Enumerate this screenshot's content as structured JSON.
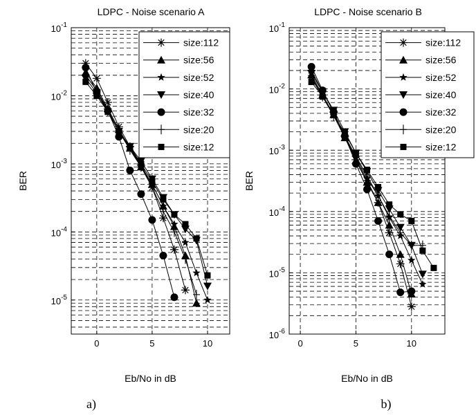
{
  "chart_data": [
    {
      "type": "line",
      "title": "LDPC - Noise scenario A",
      "xlabel": "Eb/No in dB",
      "ylabel": "BER",
      "caption": "a)",
      "xlim": [
        -2.3,
        12
      ],
      "ylim_log10": [
        -5.5,
        -1
      ],
      "xticks": [
        "0",
        "5",
        "10"
      ],
      "yticks": [
        "10^-1",
        "10^-2",
        "10^-3",
        "10^-4",
        "10^-5"
      ],
      "yscale": "log",
      "grid": true,
      "legend_position": "top-right",
      "series": [
        {
          "name": "size:112",
          "marker": "asterisk",
          "x": [
            -1,
            0,
            1,
            2,
            3,
            4,
            5,
            6,
            7,
            8,
            9,
            10
          ],
          "y": [
            0.03,
            0.018,
            0.008,
            0.0035,
            0.0018,
            0.00095,
            0.00045,
            0.00016,
            5.5e-05,
            1.4e-05,
            null,
            null
          ]
        },
        {
          "name": "size:56",
          "marker": "triangle-up",
          "x": [
            -1,
            0,
            1,
            2,
            3,
            4,
            5,
            6,
            7,
            8,
            9,
            10
          ],
          "y": [
            0.022,
            0.013,
            0.0065,
            0.0032,
            0.0017,
            0.0009,
            0.0005,
            0.00024,
            0.00012,
            4.5e-05,
            9e-06,
            null
          ]
        },
        {
          "name": "size:52",
          "marker": "star",
          "x": [
            -1,
            0,
            1,
            2,
            3,
            4,
            5,
            6,
            7,
            8,
            9,
            10
          ],
          "y": [
            0.02,
            0.012,
            0.0062,
            0.003,
            0.0017,
            0.00095,
            0.0005,
            0.00024,
            0.00013,
            7e-05,
            2.5e-05,
            1e-05
          ]
        },
        {
          "name": "size:40",
          "marker": "triangle-down",
          "x": [
            -1,
            0,
            1,
            2,
            3,
            4,
            5,
            6,
            7,
            8,
            9,
            10
          ],
          "y": [
            0.018,
            0.011,
            0.0058,
            0.003,
            0.0018,
            0.0011,
            0.0006,
            0.00032,
            0.00018,
            0.00011,
            7.5e-05,
            1.6e-05
          ]
        },
        {
          "name": "size:32",
          "marker": "circle",
          "x": [
            -1,
            0,
            1,
            2,
            3,
            4,
            5,
            6,
            7
          ],
          "y": [
            0.026,
            0.011,
            0.006,
            0.0025,
            0.0008,
            0.00036,
            0.00015,
            4.5e-05,
            1.1e-05
          ]
        },
        {
          "name": "size:20",
          "marker": "plus",
          "x": [
            -1,
            0,
            1,
            2,
            3,
            4,
            5,
            6,
            7,
            8,
            9
          ],
          "y": [
            0.02,
            0.012,
            0.006,
            0.003,
            0.0016,
            0.0009,
            0.00045,
            0.0002,
            0.0001,
            4e-05,
            1.2e-05
          ]
        },
        {
          "name": "size:12",
          "marker": "square",
          "x": [
            -1,
            0,
            1,
            2,
            3,
            4,
            5,
            6,
            7,
            8,
            9,
            10
          ],
          "y": [
            0.016,
            0.01,
            0.0058,
            0.003,
            0.0018,
            0.001,
            0.00055,
            0.0003,
            0.00018,
            0.00013,
            8e-05,
            2.3e-05
          ]
        }
      ]
    },
    {
      "type": "line",
      "title": "LDPC - Noise scenario B",
      "xlabel": "Eb/No in dB",
      "ylabel": "BER",
      "caption": "b)",
      "xlim": [
        -1,
        13
      ],
      "ylim_log10": [
        -6,
        -1
      ],
      "xticks": [
        "0",
        "5",
        "10"
      ],
      "yticks": [
        "10^-1",
        "10^-2",
        "10^-3",
        "10^-4",
        "10^-5",
        "10^-6"
      ],
      "yscale": "log",
      "grid": true,
      "legend_position": "top-right",
      "series": [
        {
          "name": "size:112",
          "marker": "asterisk",
          "x": [
            1,
            2,
            3,
            4,
            5,
            6,
            7,
            8,
            9,
            10
          ],
          "y": [
            0.02,
            0.009,
            0.0042,
            0.0017,
            0.0007,
            0.00032,
            0.00014,
            4.5e-05,
            1.4e-05,
            2.8e-06
          ]
        },
        {
          "name": "size:56",
          "marker": "triangle-up",
          "x": [
            1,
            2,
            3,
            4,
            5,
            6,
            7,
            8,
            9,
            10
          ],
          "y": [
            0.017,
            0.008,
            0.0038,
            0.0016,
            0.00068,
            0.0003,
            0.00014,
            6e-05,
            2e-05,
            4.5e-06
          ]
        },
        {
          "name": "size:52",
          "marker": "star",
          "x": [
            1,
            2,
            3,
            4,
            5,
            6,
            7,
            8,
            9,
            10,
            11
          ],
          "y": [
            0.016,
            0.0075,
            0.0037,
            0.0016,
            0.00075,
            0.00035,
            0.00018,
            8e-05,
            4e-05,
            1.6e-05,
            6.5e-06
          ]
        },
        {
          "name": "size:40",
          "marker": "triangle-down",
          "x": [
            1,
            2,
            3,
            4,
            5,
            6,
            7,
            8,
            9,
            10,
            11
          ],
          "y": [
            0.018,
            0.009,
            0.0045,
            0.002,
            0.0009,
            0.00045,
            0.00022,
            0.00011,
            5.5e-05,
            2.8e-05,
            9.5e-06
          ]
        },
        {
          "name": "size:32",
          "marker": "circle",
          "x": [
            1,
            2,
            3,
            4,
            5,
            6,
            7,
            8,
            9,
            10
          ],
          "y": [
            0.023,
            0.0095,
            0.0042,
            0.0017,
            0.0006,
            0.00023,
            7e-05,
            2e-05,
            4.8e-06,
            5e-06
          ]
        },
        {
          "name": "size:20",
          "marker": "plus",
          "x": [
            1,
            2,
            3,
            4,
            5,
            6,
            7,
            8,
            9,
            10,
            11
          ],
          "y": [
            0.015,
            0.0075,
            0.0036,
            0.0017,
            0.0008,
            0.00038,
            0.00018,
            8.5e-05,
            4.5e-05,
            2.8e-05,
            2.8e-05
          ]
        },
        {
          "name": "size:12",
          "marker": "square",
          "x": [
            1,
            2,
            3,
            4,
            5,
            6,
            7,
            8,
            9,
            10,
            11,
            12
          ],
          "y": [
            0.013,
            0.0075,
            0.0038,
            0.0019,
            0.0009,
            0.00048,
            0.00025,
            0.00013,
            9e-05,
            7e-05,
            2.3e-05,
            1.2e-05
          ]
        }
      ]
    }
  ]
}
